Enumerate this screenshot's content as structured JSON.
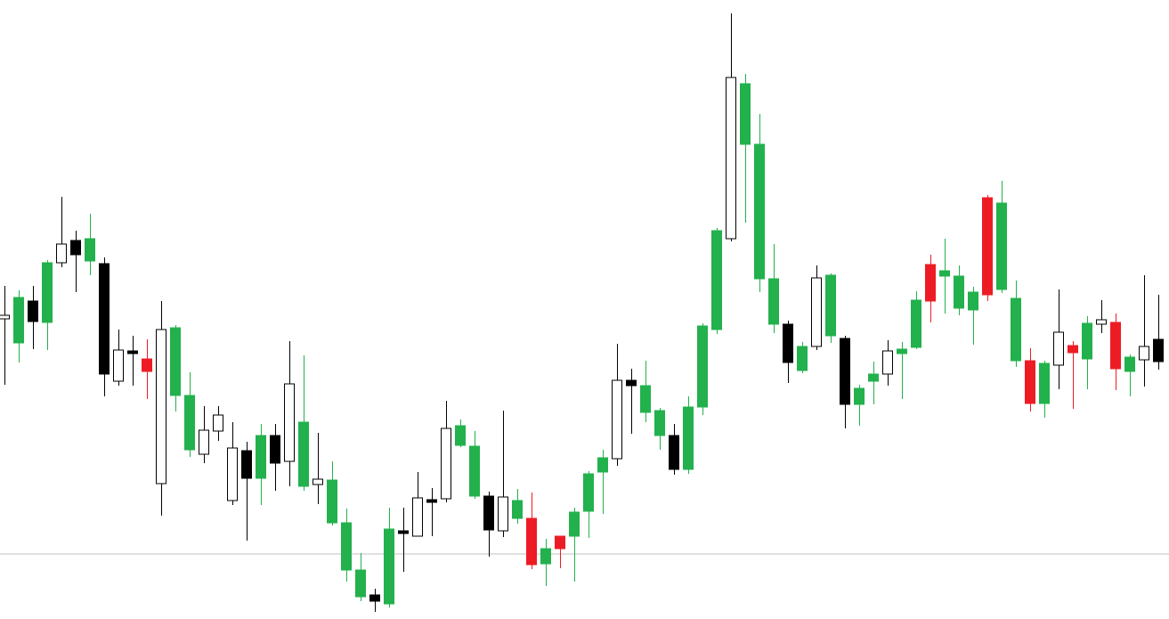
{
  "chart_data": {
    "type": "candlestick",
    "title": "",
    "xlabel": "",
    "ylabel": "",
    "ylim": [
      0,
      695
    ],
    "grid": false,
    "legend": "none",
    "reference_line": {
      "value": 73,
      "color": "#c0c0c0"
    },
    "colors": {
      "bull": "#ffffff",
      "bear": "#000000",
      "green": "#22b14c",
      "red": "#ed1c24",
      "outline": "#000000"
    },
    "candles": [
      {
        "x": 5,
        "o": 341,
        "c": 337,
        "h": 374,
        "l": 263,
        "color": "bull"
      },
      {
        "x": 21,
        "o": 310,
        "c": 361,
        "h": 369,
        "l": 288,
        "color": "green"
      },
      {
        "x": 37,
        "o": 334,
        "c": 357,
        "h": 374,
        "l": 303,
        "color": "bear"
      },
      {
        "x": 53,
        "o": 333,
        "c": 400,
        "h": 403,
        "l": 302,
        "color": "green"
      },
      {
        "x": 69,
        "o": 400,
        "c": 421,
        "h": 474,
        "l": 395,
        "color": "bull"
      },
      {
        "x": 85,
        "o": 425,
        "c": 409,
        "h": 436,
        "l": 367,
        "color": "bear"
      },
      {
        "x": 101,
        "o": 427,
        "c": 402,
        "h": 455,
        "l": 386,
        "color": "green"
      },
      {
        "x": 117,
        "o": 399,
        "c": 275,
        "h": 406,
        "l": 250,
        "color": "bear"
      },
      {
        "x": 133,
        "o": 267,
        "c": 302,
        "h": 325,
        "l": 262,
        "color": "bull"
      },
      {
        "x": 149,
        "o": 300,
        "c": 300,
        "h": 318,
        "l": 262,
        "color": "bear"
      },
      {
        "x": 165,
        "o": 292,
        "c": 278,
        "h": 314,
        "l": 247,
        "color": "red"
      },
      {
        "x": 181,
        "o": 152,
        "c": 325,
        "h": 357,
        "l": 116,
        "color": "bull"
      },
      {
        "x": 197,
        "o": 327,
        "c": 251,
        "h": 330,
        "l": 233,
        "color": "green"
      },
      {
        "x": 213,
        "o": 251,
        "c": 190,
        "h": 277,
        "l": 182,
        "color": "green"
      },
      {
        "x": 229,
        "o": 185,
        "c": 212,
        "h": 239,
        "l": 175,
        "color": "bull"
      },
      {
        "x": 245,
        "o": 211,
        "c": 229,
        "h": 239,
        "l": 200,
        "color": "bull"
      },
      {
        "x": 261,
        "o": 133,
        "c": 192,
        "h": 221,
        "l": 128,
        "color": "bull"
      },
      {
        "x": 277,
        "o": 189,
        "c": 158,
        "h": 199,
        "l": 88,
        "color": "bear"
      },
      {
        "x": 293,
        "o": 158,
        "c": 206,
        "h": 219,
        "l": 128,
        "color": "green"
      },
      {
        "x": 309,
        "o": 206,
        "c": 175,
        "h": 219,
        "l": 144,
        "color": "bear"
      },
      {
        "x": 325,
        "o": 177,
        "c": 264,
        "h": 312,
        "l": 149,
        "color": "bull"
      },
      {
        "x": 341,
        "o": 221,
        "c": 149,
        "h": 296,
        "l": 144,
        "color": "green"
      },
      {
        "x": 357,
        "o": 151,
        "c": 157,
        "h": 209,
        "l": 129,
        "color": "bull"
      },
      {
        "x": 373,
        "o": 156,
        "c": 108,
        "h": 177,
        "l": 105,
        "color": "green"
      },
      {
        "x": 389,
        "o": 108,
        "c": 55,
        "h": 124,
        "l": 42,
        "color": "green"
      },
      {
        "x": 405,
        "o": 55,
        "c": 25,
        "h": 74,
        "l": 20,
        "color": "green"
      },
      {
        "x": 421,
        "o": 27,
        "c": 20,
        "h": 34,
        "l": 8,
        "color": "bear"
      },
      {
        "x": 437,
        "o": 17,
        "c": 101,
        "h": 125,
        "l": 13,
        "color": "green"
      },
      {
        "x": 453,
        "o": 98,
        "c": 98,
        "h": 125,
        "l": 53,
        "color": "bear"
      },
      {
        "x": 469,
        "o": 93,
        "c": 136,
        "h": 165,
        "l": 93,
        "color": "bull"
      },
      {
        "x": 485,
        "o": 133,
        "c": 133,
        "h": 147,
        "l": 93,
        "color": "bear"
      },
      {
        "x": 501,
        "o": 135,
        "c": 214,
        "h": 245,
        "l": 131,
        "color": "bull"
      },
      {
        "x": 517,
        "o": 217,
        "c": 195,
        "h": 224,
        "l": 193,
        "color": "green"
      },
      {
        "x": 533,
        "o": 194,
        "c": 138,
        "h": 211,
        "l": 135,
        "color": "green"
      },
      {
        "x": 549,
        "o": 138,
        "c": 100,
        "h": 143,
        "l": 70,
        "color": "bear"
      },
      {
        "x": 565,
        "o": 99,
        "c": 137,
        "h": 234,
        "l": 92,
        "color": "bull"
      },
      {
        "x": 581,
        "o": 133,
        "c": 113,
        "h": 146,
        "l": 107,
        "color": "green"
      },
      {
        "x": 597,
        "o": 113,
        "c": 61,
        "h": 142,
        "l": 56,
        "color": "red"
      },
      {
        "x": 613,
        "o": 79,
        "c": 62,
        "h": 90,
        "l": 37,
        "color": "green"
      },
      {
        "x": 629,
        "o": 93,
        "c": 79,
        "h": 93,
        "l": 57,
        "color": "red"
      },
      {
        "x": 645,
        "o": 93,
        "c": 120,
        "h": 125,
        "l": 42,
        "color": "green"
      },
      {
        "x": 661,
        "o": 121,
        "c": 163,
        "h": 166,
        "l": 91,
        "color": "green"
      },
      {
        "x": 677,
        "o": 165,
        "c": 181,
        "h": 190,
        "l": 118,
        "color": "green"
      },
      {
        "x": 693,
        "o": 180,
        "c": 268,
        "h": 309,
        "l": 172,
        "color": "bull"
      },
      {
        "x": 709,
        "o": 268,
        "c": 262,
        "h": 281,
        "l": 208,
        "color": "bear"
      },
      {
        "x": 725,
        "o": 262,
        "c": 232,
        "h": 290,
        "l": 221,
        "color": "green"
      },
      {
        "x": 741,
        "o": 234,
        "c": 206,
        "h": 237,
        "l": 190,
        "color": "green"
      },
      {
        "x": 757,
        "o": 206,
        "c": 168,
        "h": 219,
        "l": 162,
        "color": "bear"
      },
      {
        "x": 773,
        "o": 168,
        "c": 238,
        "h": 250,
        "l": 163,
        "color": "green"
      },
      {
        "x": 789,
        "o": 238,
        "c": 329,
        "h": 332,
        "l": 229,
        "color": "green"
      },
      {
        "x": 805,
        "o": 325,
        "c": 436,
        "h": 439,
        "l": 320,
        "color": "green"
      },
      {
        "x": 821,
        "o": 427,
        "c": 608,
        "h": 680,
        "l": 424,
        "color": "bull"
      },
      {
        "x": 837,
        "o": 601,
        "c": 533,
        "h": 612,
        "l": 445,
        "color": "green"
      },
      {
        "x": 853,
        "o": 533,
        "c": 382,
        "h": 567,
        "l": 367,
        "color": "green"
      },
      {
        "x": 869,
        "o": 382,
        "c": 331,
        "h": 421,
        "l": 321,
        "color": "green"
      },
      {
        "x": 885,
        "o": 331,
        "c": 288,
        "h": 335,
        "l": 265,
        "color": "bear"
      },
      {
        "x": 901,
        "o": 306,
        "c": 279,
        "h": 311,
        "l": 276,
        "color": "green"
      },
      {
        "x": 917,
        "o": 306,
        "c": 383,
        "h": 397,
        "l": 302,
        "color": "bull"
      },
      {
        "x": 933,
        "o": 386,
        "c": 318,
        "h": 388,
        "l": 310,
        "color": "green"
      },
      {
        "x": 949,
        "o": 315,
        "c": 241,
        "h": 318,
        "l": 214,
        "color": "bear"
      },
      {
        "x": 965,
        "o": 241,
        "c": 259,
        "h": 263,
        "l": 217,
        "color": "green"
      },
      {
        "x": 981,
        "o": 267,
        "c": 275,
        "h": 289,
        "l": 241,
        "color": "green"
      },
      {
        "x": 997,
        "o": 275,
        "c": 301,
        "h": 313,
        "l": 262,
        "color": "bull"
      },
      {
        "x": 1013,
        "o": 298,
        "c": 303,
        "h": 311,
        "l": 247,
        "color": "green"
      },
      {
        "x": 1029,
        "o": 305,
        "c": 358,
        "h": 368,
        "l": 303,
        "color": "green"
      },
      {
        "x": 1045,
        "o": 398,
        "c": 357,
        "h": 409,
        "l": 333,
        "color": "red"
      },
      {
        "x": 1061,
        "o": 385,
        "c": 391,
        "h": 427,
        "l": 343,
        "color": "green"
      },
      {
        "x": 1077,
        "o": 385,
        "c": 349,
        "h": 397,
        "l": 341,
        "color": "green"
      },
      {
        "x": 1093,
        "o": 367,
        "c": 347,
        "h": 373,
        "l": 308,
        "color": "green"
      },
      {
        "x": 1109,
        "o": 473,
        "c": 364,
        "h": 476,
        "l": 357,
        "color": "red"
      },
      {
        "x": 1125,
        "o": 467,
        "c": 370,
        "h": 492,
        "l": 366,
        "color": "green"
      },
      {
        "x": 1141,
        "o": 360,
        "c": 290,
        "h": 380,
        "l": 283,
        "color": "green"
      },
      {
        "x": 1157,
        "o": 290,
        "c": 242,
        "h": 304,
        "l": 233,
        "color": "red"
      },
      {
        "x": 1173,
        "o": 287,
        "c": 242,
        "h": 290,
        "l": 226,
        "color": "green"
      },
      {
        "x": 1189,
        "o": 285,
        "c": 322,
        "h": 370,
        "l": 258,
        "color": "bull"
      },
      {
        "x": 1205,
        "o": 307,
        "c": 299,
        "h": 312,
        "l": 236,
        "color": "red"
      },
      {
        "x": 1221,
        "o": 292,
        "c": 332,
        "h": 340,
        "l": 258,
        "color": "green"
      },
      {
        "x": 1237,
        "o": 331,
        "c": 336,
        "h": 358,
        "l": 321,
        "color": "bull"
      },
      {
        "x": 1253,
        "o": 333,
        "c": 281,
        "h": 343,
        "l": 257,
        "color": "red"
      },
      {
        "x": 1269,
        "o": 278,
        "c": 294,
        "h": 297,
        "l": 250,
        "color": "green"
      },
      {
        "x": 1285,
        "o": 291,
        "c": 306,
        "h": 386,
        "l": 261,
        "color": "bull"
      },
      {
        "x": 1301,
        "o": 314,
        "c": 289,
        "h": 364,
        "l": 280,
        "color": "bear"
      }
    ]
  }
}
